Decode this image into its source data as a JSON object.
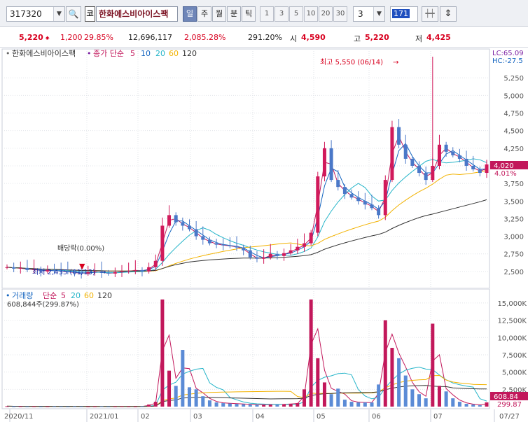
{
  "toolbar": {
    "code": "317320",
    "market_tag": "코",
    "stock_name": "한화에스비아이스팩",
    "periods": [
      "일",
      "주",
      "월",
      "분",
      "틱"
    ],
    "active_period": "일",
    "minute_options": [
      "1",
      "3",
      "5",
      "10",
      "20",
      "30"
    ],
    "count_value": "3",
    "bars_value": "171",
    "search_icon": "search-icon",
    "candle_icon": "candle-toggle-icon",
    "updown_icon": "vertical-resize-icon"
  },
  "quote": {
    "price": "5,220",
    "change": "1,200",
    "change_rate": "29.85%",
    "volume": "12,696,117",
    "volume_rate": "2,085.28%",
    "turnover_rate": "291.20%",
    "open_label": "시",
    "open": "4,590",
    "high_label": "고",
    "high": "5,220",
    "low_label": "저",
    "low": "4,425",
    "up_color": "#d8001f"
  },
  "price_panel": {
    "legend_name": "한화에스비아이스팩",
    "legend_ma_label": "종가 단순",
    "legend_periods": [
      "5",
      "10",
      "20",
      "60",
      "120"
    ],
    "lc_label": "LC:65.09",
    "hc_label": "HC:-27.5",
    "current_label": "4,020",
    "current_pct": "4.01%",
    "high_annotation": "최고 5,550 (06/14)",
    "low_annotation": "최저 2,435 (01/13)",
    "dividend_annotation": "배당락(0.00%)"
  },
  "volume_panel": {
    "legend_name": "거래량",
    "legend_ma_label": "단순",
    "legend_periods": [
      "5",
      "20",
      "60",
      "120"
    ],
    "volume_value": "608,844주(299.87%)",
    "current_label": "608.84",
    "current_pct": "299.87"
  },
  "x_axis": {
    "labels": [
      "2020/11",
      "2021/01",
      "02",
      "03",
      "04",
      "05",
      "06",
      "07",
      "07/27"
    ]
  },
  "chart_data": [
    {
      "type": "line",
      "title": "한화에스비아이스팩",
      "ylim": [
        2300,
        5600
      ],
      "y_ticks": [
        "2,500",
        "2,750",
        "3,000",
        "3,250",
        "3,500",
        "3,750",
        "4,000",
        "4,250",
        "4,500",
        "4,750",
        "5,000",
        "5,250"
      ],
      "x_labels": [
        "2020/11",
        "2021/01",
        "02",
        "03",
        "04",
        "05",
        "06",
        "07",
        "07/27"
      ],
      "series": [
        {
          "name": "5",
          "color": "#c2185b"
        },
        {
          "name": "10",
          "color": "#1565c0"
        },
        {
          "name": "20",
          "color": "#26b5c9"
        },
        {
          "name": "60",
          "color": "#f2b200"
        },
        {
          "name": "120",
          "color": "#333333"
        }
      ],
      "close_approx": [
        2560,
        2540,
        2550,
        2520,
        2530,
        2500,
        2520,
        2510,
        2500,
        2490,
        2480,
        2470,
        2490,
        2500,
        2480,
        2470,
        2490,
        2500,
        2510,
        2520,
        2500,
        2560,
        2650,
        3150,
        3300,
        3200,
        3150,
        3100,
        3000,
        2950,
        2900,
        2880,
        2870,
        2860,
        2840,
        2800,
        2700,
        2680,
        2700,
        2750,
        2720,
        2760,
        2800,
        2850,
        2900,
        3050,
        3850,
        4250,
        3800,
        3700,
        3600,
        3550,
        3500,
        3450,
        3400,
        3300,
        3800,
        4550,
        4300,
        4100,
        4000,
        3900,
        3800,
        4000,
        4300,
        4200,
        4150,
        4100,
        4000,
        3950,
        3900,
        4020
      ],
      "high": 5550,
      "high_date": "06/14",
      "low": 2435,
      "low_date": "01/13",
      "last": 4020
    },
    {
      "type": "bar",
      "title": "거래량",
      "ylim": [
        0,
        16000
      ],
      "y_ticks": [
        "2,500",
        "5,000",
        "7,500",
        "10,000",
        "12,500",
        "15,000"
      ],
      "unit": "K",
      "x_labels": [
        "2020/11",
        "2021/01",
        "02",
        "03",
        "04",
        "05",
        "06",
        "07",
        "07/27"
      ],
      "series": [
        {
          "name": "5",
          "color": "#c2185b"
        },
        {
          "name": "20",
          "color": "#26b5c9"
        },
        {
          "name": "60",
          "color": "#f2b200"
        },
        {
          "name": "120",
          "color": "#333333"
        }
      ],
      "values_approx": [
        60,
        40,
        50,
        30,
        40,
        20,
        30,
        40,
        30,
        20,
        40,
        30,
        20,
        30,
        40,
        20,
        30,
        40,
        30,
        20,
        40,
        300,
        700,
        15500,
        5200,
        3000,
        8200,
        2800,
        2500,
        1500,
        900,
        600,
        500,
        450,
        400,
        350,
        300,
        250,
        280,
        320,
        300,
        350,
        400,
        500,
        2500,
        15500,
        7000,
        3500,
        1800,
        2600,
        1000,
        700,
        600,
        600,
        600,
        3200,
        12500,
        8500,
        7000,
        4500,
        2500,
        1800,
        1200,
        12000,
        3000,
        2200,
        1200,
        700,
        400,
        300,
        200,
        608.84
      ],
      "last": 608.84
    }
  ]
}
